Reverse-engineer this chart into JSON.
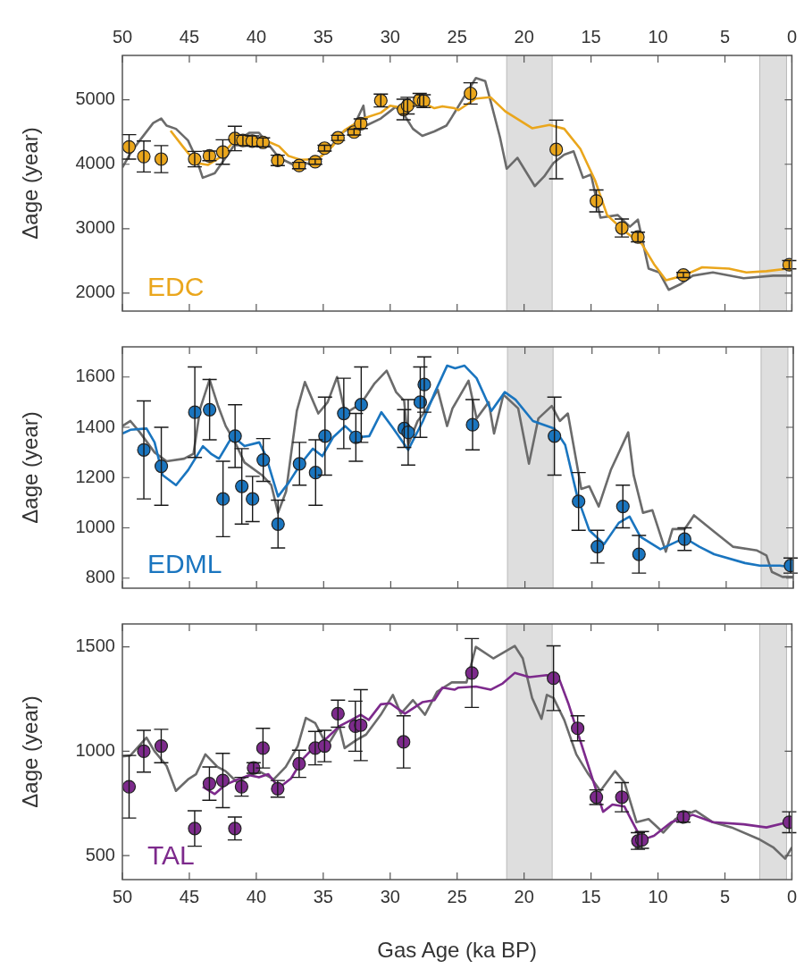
{
  "chart_data": [
    {
      "type": "line",
      "ylabel": "Δage (year)",
      "xlim": [
        50,
        0
      ],
      "xticks": [
        50,
        45,
        40,
        35,
        30,
        25,
        20,
        15,
        10,
        5,
        0
      ],
      "x2lim": [
        50,
        0
      ],
      "x2ticks": [
        50,
        45,
        40,
        35,
        30,
        25,
        20,
        15,
        10,
        5,
        0
      ],
      "ylim": [
        1720,
        5690
      ],
      "yticks": [
        2000,
        3000,
        4000,
        5000
      ],
      "tick_labels": "y",
      "legend": false,
      "grid": false,
      "bands": [
        {
          "axis": "x",
          "from": 17.9,
          "to": 21.3,
          "color": "#dedede"
        },
        {
          "axis": "x",
          "from": 0.4,
          "to": 2.4,
          "color": "#dedede"
        }
      ],
      "series": [
        {
          "type": "line",
          "color": "#6b6b6b",
          "x": [
            50.0,
            49.4,
            48.7,
            47.7,
            47.1,
            46.7,
            46.0,
            45.1,
            44.5,
            44.0,
            43.1,
            42.3,
            41.4,
            40.5,
            39.8,
            39.1,
            38.3,
            37.2,
            35.8,
            34.7,
            33.6,
            32.7,
            32.0,
            31.8,
            30.7,
            29.6,
            28.9,
            28.3,
            27.6,
            26.7,
            25.8,
            25.4,
            24.5,
            23.6,
            22.9,
            22.5,
            21.8,
            21.3,
            20.5,
            19.2,
            18.5,
            17.8,
            17.0,
            16.3,
            15.6,
            15.0,
            14.3,
            13.0,
            12.1,
            11.5,
            10.7,
            9.9,
            9.2,
            8.3,
            7.4,
            5.9,
            3.6,
            1.4,
            0
          ],
          "values": [
            3950,
            4170,
            4370,
            4640,
            4710,
            4600,
            4550,
            4370,
            4100,
            3790,
            3860,
            4100,
            4370,
            4490,
            4490,
            4310,
            4100,
            3990,
            4020,
            4200,
            4490,
            4600,
            4910,
            4600,
            4710,
            4890,
            4750,
            4550,
            4440,
            4510,
            4600,
            4730,
            5040,
            5340,
            5290,
            4980,
            4420,
            3930,
            4100,
            3660,
            3810,
            4020,
            4150,
            4200,
            3790,
            3840,
            3170,
            3210,
            3030,
            3140,
            2380,
            2320,
            2050,
            2140,
            2270,
            2320,
            2230,
            2270,
            2270
          ]
        },
        {
          "type": "line",
          "name": "EDC",
          "color": "#eaa61c",
          "x": [
            46.4,
            45.5,
            44.5,
            43.6,
            42.7,
            41.7,
            40.5,
            39.1,
            38.3,
            37.6,
            36.7,
            35.4,
            34.3,
            33.4,
            32.0,
            30.7,
            30.0,
            28.9,
            27.6,
            26.7,
            26.1,
            25.2,
            24.9,
            23.6,
            22.5,
            21.4,
            19.4,
            18.1,
            17.0,
            15.8,
            14.7,
            13.8,
            12.5,
            11.2,
            10.3,
            9.4,
            8.1,
            6.7,
            4.7,
            3.4,
            1.9,
            0.3
          ],
          "values": [
            4520,
            4280,
            4020,
            3990,
            4110,
            4350,
            4400,
            4350,
            4280,
            4130,
            4070,
            4080,
            4280,
            4530,
            4710,
            4800,
            4910,
            4870,
            4960,
            4870,
            4900,
            4870,
            4840,
            5020,
            5040,
            4820,
            4560,
            4610,
            4550,
            4240,
            3750,
            3210,
            2960,
            2760,
            2450,
            2200,
            2270,
            2400,
            2380,
            2320,
            2340,
            2380
          ]
        },
        {
          "type": "scatter",
          "marker": "circle",
          "color": "#eaa61c",
          "x": [
            49.5,
            48.4,
            47.1,
            44.6,
            43.5,
            42.5,
            41.6,
            41.0,
            40.3,
            39.5,
            38.4,
            36.8,
            35.6,
            34.9,
            33.9,
            32.7,
            32.2,
            30.7,
            29.0,
            28.7,
            27.8,
            27.5,
            24.0,
            17.6,
            14.6,
            12.7,
            11.5,
            8.1,
            0.2
          ],
          "values": [
            4270,
            4120,
            4080,
            4080,
            4130,
            4190,
            4400,
            4370,
            4360,
            4340,
            4060,
            3980,
            4040,
            4250,
            4410,
            4500,
            4630,
            4990,
            4850,
            4910,
            5000,
            4980,
            5100,
            4230,
            3430,
            3010,
            2870,
            2280,
            2440
          ],
          "errors": [
            190,
            240,
            210,
            120,
            75,
            190,
            190,
            80,
            80,
            70,
            80,
            50,
            40,
            45,
            40,
            45,
            75,
            100,
            160,
            130,
            100,
            100,
            165,
            455,
            170,
            140,
            75,
            40,
            65
          ]
        }
      ]
    },
    {
      "type": "line",
      "ylabel": "Δage (year)",
      "xlim": [
        50,
        0
      ],
      "xticks": [
        50,
        45,
        40,
        35,
        30,
        25,
        20,
        15,
        10,
        5,
        0
      ],
      "ylim": [
        760,
        1720
      ],
      "yticks": [
        800,
        1000,
        1200,
        1400,
        1600
      ],
      "tick_labels": "y",
      "legend": false,
      "grid": false,
      "bands": [
        {
          "axis": "x",
          "from": 17.9,
          "to": 21.3,
          "color": "#dedede"
        },
        {
          "axis": "x",
          "from": 0.4,
          "to": 2.4,
          "color": "#dedede"
        }
      ],
      "series": [
        {
          "type": "line",
          "color": "#6b6b6b",
          "x": [
            50.0,
            49.4,
            48.7,
            47.6,
            46.7,
            45.4,
            44.7,
            44.2,
            43.5,
            42.9,
            42.3,
            41.6,
            40.9,
            39.6,
            38.9,
            38.4,
            37.8,
            37.0,
            36.4,
            35.4,
            34.7,
            34.0,
            33.4,
            32.2,
            31.2,
            30.3,
            29.6,
            29.0,
            28.7,
            28.0,
            27.4,
            26.5,
            25.8,
            25.4,
            24.2,
            23.6,
            22.7,
            22.3,
            21.6,
            20.5,
            19.7,
            19.0,
            18.0,
            17.4,
            16.8,
            15.8,
            15.2,
            14.5,
            13.6,
            12.3,
            11.9,
            11.2,
            10.5,
            9.5,
            9.0,
            8.1,
            7.4,
            5.9,
            4.5,
            2.7,
            2.0,
            1.6,
            0.8,
            0
          ],
          "values": [
            1405,
            1425,
            1380,
            1300,
            1265,
            1275,
            1295,
            1475,
            1590,
            1490,
            1405,
            1340,
            1260,
            1210,
            1170,
            1060,
            1145,
            1465,
            1580,
            1455,
            1500,
            1600,
            1455,
            1495,
            1575,
            1625,
            1540,
            1505,
            1330,
            1425,
            1465,
            1550,
            1405,
            1475,
            1585,
            1435,
            1500,
            1375,
            1530,
            1475,
            1255,
            1435,
            1485,
            1425,
            1455,
            1155,
            1165,
            1085,
            1230,
            1380,
            1210,
            1060,
            1070,
            905,
            995,
            995,
            1050,
            985,
            925,
            910,
            890,
            825,
            805,
            805
          ]
        },
        {
          "type": "line",
          "name": "EDML",
          "color": "#1a75bf",
          "x": [
            50.0,
            49.4,
            48.2,
            47.6,
            47.0,
            46.0,
            45.1,
            44.0,
            43.4,
            42.8,
            41.8,
            40.9,
            39.8,
            39.3,
            38.4,
            37.6,
            36.7,
            35.8,
            35.1,
            34.3,
            33.4,
            32.5,
            31.6,
            30.7,
            29.8,
            28.7,
            27.6,
            26.7,
            25.8,
            25.2,
            24.5,
            23.6,
            22.5,
            21.5,
            20.7,
            19.4,
            17.8,
            17.0,
            16.1,
            15.2,
            14.1,
            13.0,
            12.2,
            11.4,
            9.9,
            8.1,
            7.0,
            5.9,
            3.6,
            2.5,
            1.0,
            0.3
          ],
          "values": [
            1375,
            1390,
            1395,
            1340,
            1210,
            1170,
            1230,
            1325,
            1295,
            1275,
            1365,
            1325,
            1340,
            1285,
            1125,
            1180,
            1255,
            1315,
            1285,
            1360,
            1405,
            1360,
            1365,
            1460,
            1395,
            1310,
            1425,
            1540,
            1645,
            1635,
            1645,
            1595,
            1465,
            1540,
            1510,
            1425,
            1395,
            1330,
            1125,
            990,
            935,
            1020,
            1045,
            965,
            915,
            960,
            925,
            895,
            860,
            850,
            850,
            845
          ]
        },
        {
          "type": "scatter",
          "marker": "circle",
          "color": "#1a75bf",
          "x": [
            48.4,
            47.1,
            44.6,
            43.5,
            42.5,
            41.6,
            41.1,
            40.3,
            39.5,
            38.4,
            36.8,
            35.6,
            34.9,
            33.5,
            32.6,
            32.2,
            29.0,
            28.7,
            27.8,
            27.5,
            23.9,
            17.8,
            16.0,
            14.6,
            12.7,
            11.5,
            8.1,
            0.2
          ],
          "values": [
            1310,
            1245,
            1460,
            1470,
            1115,
            1365,
            1165,
            1115,
            1270,
            1015,
            1255,
            1220,
            1365,
            1455,
            1360,
            1490,
            1395,
            1380,
            1500,
            1570,
            1410,
            1365,
            1105,
            925,
            1085,
            895,
            955,
            850
          ],
          "errors": [
            195,
            155,
            180,
            120,
            150,
            125,
            150,
            90,
            85,
            95,
            85,
            130,
            155,
            140,
            95,
            150,
            75,
            130,
            140,
            110,
            100,
            155,
            115,
            65,
            85,
            75,
            45,
            30
          ]
        }
      ]
    },
    {
      "type": "line",
      "xlabel": "Gas Age (ka BP)",
      "ylabel": "Δage (year)",
      "xlim": [
        50,
        0
      ],
      "xticks": [
        50,
        45,
        40,
        35,
        30,
        25,
        20,
        15,
        10,
        5,
        0
      ],
      "ylim": [
        385,
        1610
      ],
      "yticks": [
        500,
        1000,
        1500
      ],
      "legend": false,
      "grid": false,
      "bands": [
        {
          "axis": "x",
          "from": 17.9,
          "to": 21.3,
          "color": "#dedede"
        },
        {
          "axis": "x",
          "from": 0.4,
          "to": 2.4,
          "color": "#dedede"
        }
      ],
      "series": [
        {
          "type": "line",
          "color": "#6b6b6b",
          "x": [
            50.0,
            49.4,
            48.2,
            47.6,
            46.7,
            46.0,
            45.1,
            44.5,
            43.8,
            42.9,
            42.3,
            41.4,
            40.7,
            39.8,
            38.7,
            37.8,
            36.9,
            36.3,
            35.6,
            34.7,
            33.8,
            33.4,
            32.5,
            31.8,
            30.7,
            29.8,
            29.2,
            28.3,
            27.4,
            26.5,
            25.4,
            24.3,
            23.6,
            22.3,
            20.7,
            20.1,
            19.4,
            18.7,
            18.3,
            17.8,
            17.0,
            16.1,
            15.2,
            14.3,
            13.2,
            12.5,
            11.6,
            10.7,
            9.6,
            8.7,
            7.2,
            5.9,
            4.5,
            2.5,
            1.4,
            0.5,
            0
          ],
          "values": [
            975,
            980,
            1065,
            1000,
            930,
            810,
            865,
            890,
            985,
            925,
            905,
            850,
            880,
            905,
            865,
            925,
            1025,
            1160,
            1135,
            1025,
            1120,
            1015,
            1055,
            1080,
            1175,
            1270,
            1180,
            1245,
            1175,
            1285,
            1330,
            1330,
            1500,
            1445,
            1505,
            1445,
            1255,
            1155,
            1270,
            1255,
            1150,
            985,
            890,
            810,
            905,
            850,
            660,
            675,
            610,
            675,
            715,
            660,
            635,
            580,
            540,
            485,
            540
          ]
        },
        {
          "type": "line",
          "name": "TAL",
          "color": "#7d2a8c",
          "x": [
            44.0,
            43.1,
            42.3,
            41.4,
            40.5,
            39.8,
            39.1,
            38.3,
            37.4,
            36.5,
            35.6,
            34.7,
            33.8,
            32.9,
            32.2,
            31.6,
            30.7,
            30.0,
            28.9,
            27.6,
            26.7,
            26.1,
            25.2,
            24.9,
            23.6,
            22.5,
            21.6,
            20.7,
            19.6,
            18.3,
            17.4,
            16.7,
            16.1,
            15.2,
            14.1,
            13.4,
            12.5,
            11.9,
            11.2,
            10.3,
            9.0,
            7.4,
            5.9,
            3.6,
            1.9,
            0.3
          ],
          "values": [
            830,
            795,
            840,
            865,
            885,
            875,
            890,
            825,
            870,
            965,
            1025,
            1065,
            1120,
            1150,
            1175,
            1150,
            1225,
            1230,
            1180,
            1235,
            1245,
            1305,
            1295,
            1305,
            1310,
            1295,
            1325,
            1375,
            1355,
            1365,
            1350,
            1230,
            1110,
            930,
            710,
            745,
            735,
            660,
            575,
            595,
            660,
            695,
            660,
            650,
            635,
            660
          ]
        },
        {
          "type": "scatter",
          "marker": "circle",
          "color": "#7d2a8c",
          "x": [
            49.5,
            48.4,
            47.1,
            44.6,
            43.5,
            42.5,
            41.6,
            41.1,
            40.2,
            39.5,
            38.4,
            36.8,
            35.6,
            34.9,
            33.9,
            32.6,
            32.2,
            29.0,
            23.9,
            17.8,
            16.0,
            14.6,
            12.7,
            11.5,
            11.2,
            8.1,
            0.2
          ],
          "values": [
            830,
            1000,
            1025,
            630,
            845,
            860,
            630,
            830,
            920,
            1015,
            820,
            940,
            1015,
            1025,
            1180,
            1120,
            1125,
            1045,
            1375,
            1350,
            1110,
            780,
            780,
            570,
            575,
            685,
            660
          ],
          "errors": [
            150,
            100,
            80,
            85,
            80,
            130,
            55,
            45,
            25,
            95,
            40,
            65,
            80,
            75,
            65,
            120,
            170,
            125,
            165,
            155,
            60,
            35,
            70,
            40,
            40,
            25,
            50
          ]
        }
      ]
    }
  ]
}
